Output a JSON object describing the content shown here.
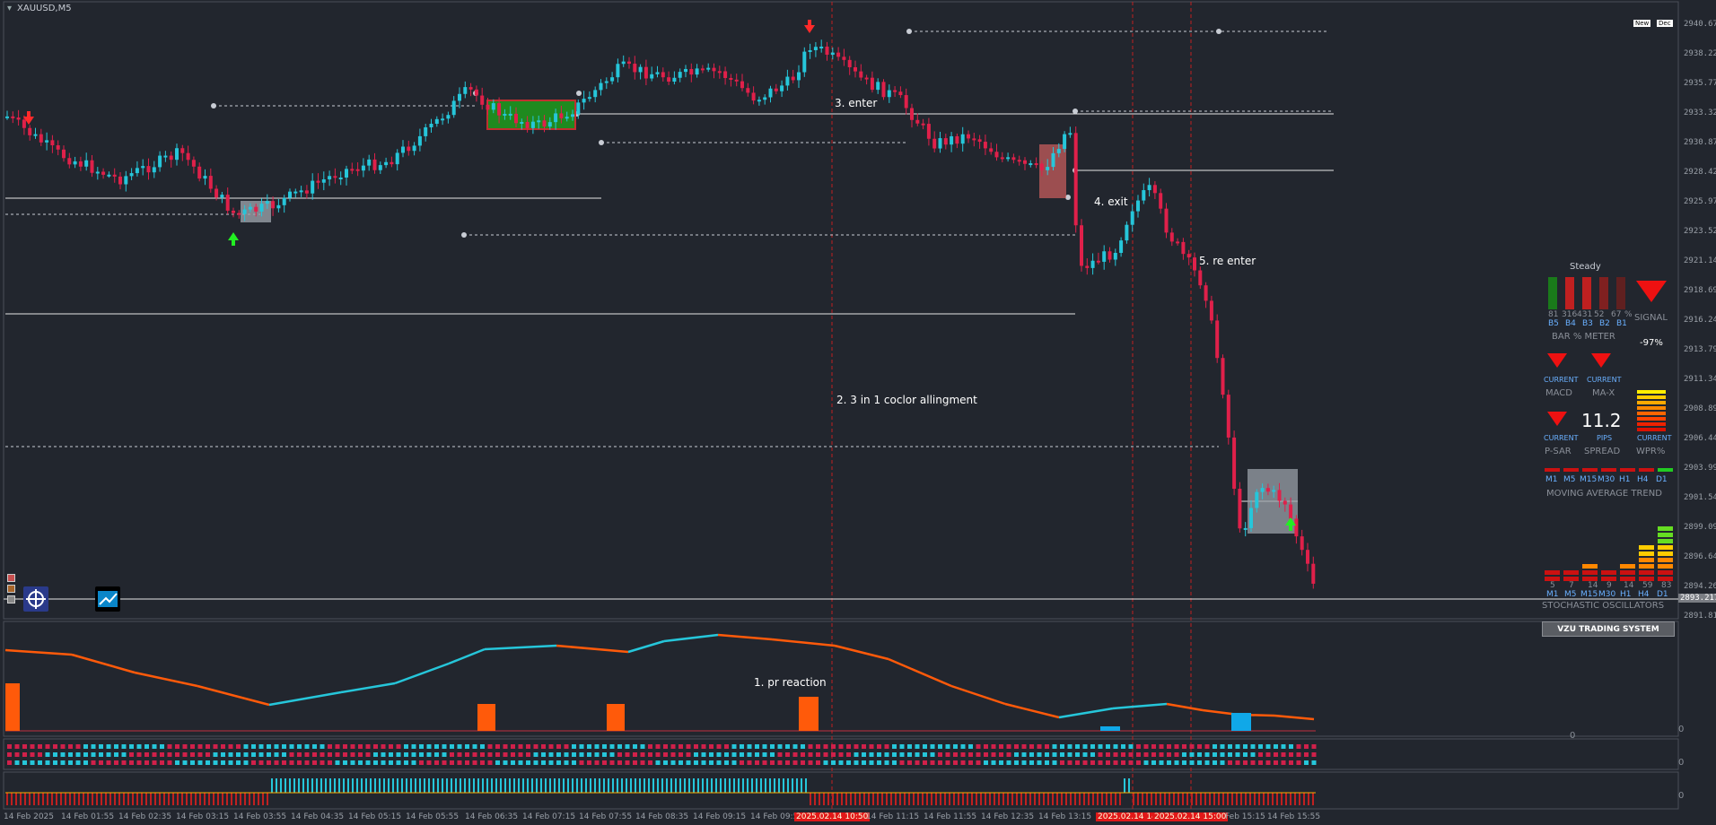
{
  "window": {
    "title": "XAUUSD,M5"
  },
  "header_badges": [
    "New",
    "Dec"
  ],
  "price_axis": [
    "2940.670",
    "2938.220",
    "2935.770",
    "2933.320",
    "2930.870",
    "2928.420",
    "2925.970",
    "2923.520",
    "2921.140",
    "2918.690",
    "2916.240",
    "2913.790",
    "2911.340",
    "2908.890",
    "2906.440",
    "2903.990",
    "2901.540",
    "2899.090",
    "2896.640",
    "2894.260",
    "2891.810"
  ],
  "current_price": "2893.217",
  "time_axis": [
    "14 Feb 2025",
    "14 Feb 01:55",
    "14 Feb 02:35",
    "14 Feb 03:15",
    "14 Feb 03:55",
    "14 Feb 04:35",
    "14 Feb 05:15",
    "14 Feb 05:55",
    "14 Feb 06:35",
    "14 Feb 07:15",
    "14 Feb 07:55",
    "14 Feb 08:35",
    "14 Feb 09:15",
    "14 Feb 09:5",
    "2025.02.14 10:50",
    "14 Feb 11:15",
    "14 Feb 11:55",
    "14 Feb 12:35",
    "14 Feb 13:15",
    "2025.02.14 14",
    "2025.02.14 15:00",
    "Feb 15:15",
    "14 Feb 15:55"
  ],
  "annotations": {
    "pr_reaction": "1. pr reaction",
    "allignment": "2. 3 in 1 coclor allingment",
    "enter": "3. enter",
    "exit": "4. exit",
    "re_enter": "5. re enter"
  },
  "subwindow_zero": "0",
  "panel": {
    "steady": "Steady",
    "bar_values": [
      "81",
      "316",
      "431",
      "52",
      "67",
      "%"
    ],
    "bar_labels": [
      "B5",
      "B4",
      "B3",
      "B2",
      "B1"
    ],
    "bar_meter": "BAR % METER",
    "signal": "SIGNAL",
    "signal_pct": "-97%",
    "current": "CURRENT",
    "macd": "MACD",
    "ma_x": "MA-X",
    "p_sar": "P-SAR",
    "spread": "SPREAD",
    "spread_value": "11.2",
    "pips": "PIPS",
    "wpr": "WPR%",
    "tf_labels": [
      "M1",
      "M5",
      "M15",
      "M30",
      "H1",
      "H4",
      "D1"
    ],
    "ma_trend": "MOVING AVERAGE TREND",
    "stoch_values": [
      "5",
      "7",
      "14",
      "9",
      "14",
      "59",
      "83"
    ],
    "stoch": "STOCHASTIC OSCILLATORS",
    "vzu": "VZU TRADING SYSTEM"
  },
  "colors": {
    "bull": "#26c6da",
    "bear": "#e0204a",
    "orange": "#ff5a0a"
  }
}
